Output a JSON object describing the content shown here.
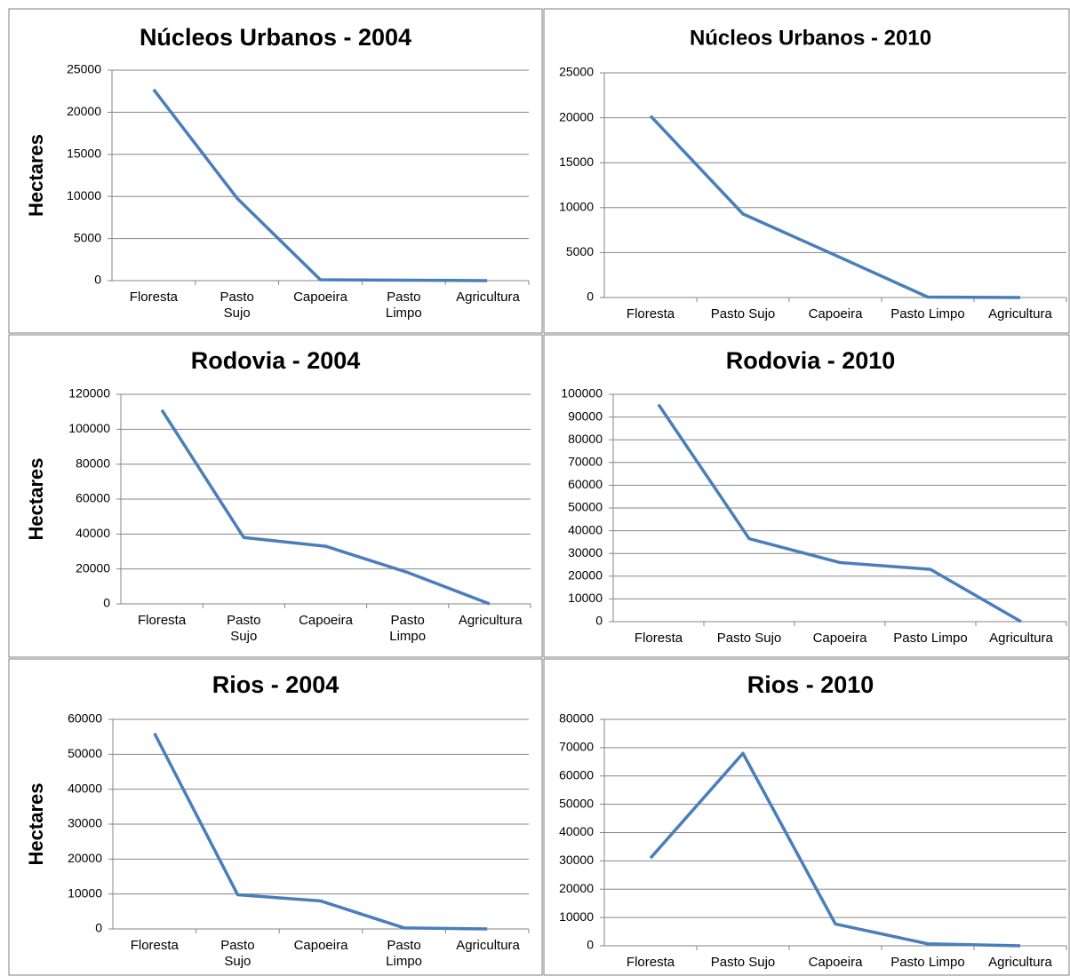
{
  "chart_data": [
    {
      "type": "line",
      "title": "Núcleos Urbanos - 2004",
      "ylabel": "Hectares",
      "categories": [
        "Floresta",
        "Pasto Sujo",
        "Capoeira",
        "Pasto Limpo",
        "Agricultura"
      ],
      "series": [
        {
          "name": "Núcleos Urbanos - 2004",
          "color": "#4a7ebb",
          "values": [
            22700,
            9800,
            100,
            50,
            0
          ]
        }
      ],
      "ylim": [
        0,
        25000
      ],
      "yticks": [
        0,
        5000,
        10000,
        15000,
        20000,
        25000
      ],
      "grid": true
    },
    {
      "type": "line",
      "title": "Núcleos Urbanos - 2010",
      "categories": [
        "Floresta",
        "Pasto Sujo",
        "Capoeira",
        "Pasto Limpo",
        "Agricultura"
      ],
      "series": [
        {
          "name": "Núcleos Urbanos - 2010",
          "color": "#4a7ebb",
          "values": [
            20200,
            9300,
            4700,
            50,
            0
          ]
        }
      ],
      "ylim": [
        0,
        25000
      ],
      "yticks": [
        0,
        5000,
        10000,
        15000,
        20000,
        25000
      ],
      "grid": true
    },
    {
      "type": "line",
      "title": "Rodovia - 2004",
      "ylabel": "Hectares",
      "categories": [
        "Floresta",
        "Pasto Sujo",
        "Capoeira",
        "Pasto Limpo",
        "Agricultura"
      ],
      "series": [
        {
          "name": "Rodovia - 2004",
          "color": "#4a7ebb",
          "values": [
            111000,
            38000,
            33000,
            18000,
            0
          ]
        }
      ],
      "ylim": [
        0,
        120000
      ],
      "yticks": [
        0,
        20000,
        40000,
        60000,
        80000,
        100000,
        120000
      ],
      "grid": true
    },
    {
      "type": "line",
      "title": "Rodovia - 2010",
      "categories": [
        "Floresta",
        "Pasto Sujo",
        "Capoeira",
        "Pasto Limpo",
        "Agricultura"
      ],
      "series": [
        {
          "name": "Rodovia - 2010",
          "color": "#4a7ebb",
          "values": [
            95500,
            36500,
            26000,
            23000,
            0
          ]
        }
      ],
      "ylim": [
        0,
        100000
      ],
      "yticks": [
        0,
        10000,
        20000,
        30000,
        40000,
        50000,
        60000,
        70000,
        80000,
        90000,
        100000
      ],
      "grid": true
    },
    {
      "type": "line",
      "title": "Rios - 2004",
      "ylabel": "Hectares",
      "categories": [
        "Floresta",
        "Pasto Sujo",
        "Capoeira",
        "Pasto Limpo",
        "Agricultura"
      ],
      "series": [
        {
          "name": "Rios - 2004",
          "color": "#4a7ebb",
          "values": [
            56000,
            9800,
            8000,
            300,
            0
          ]
        }
      ],
      "ylim": [
        0,
        60000
      ],
      "yticks": [
        0,
        10000,
        20000,
        30000,
        40000,
        50000,
        60000
      ],
      "grid": true
    },
    {
      "type": "line",
      "title": "Rios - 2010",
      "categories": [
        "Floresta",
        "Pasto Sujo",
        "Capoeira",
        "Pasto Limpo",
        "Agricultura"
      ],
      "series": [
        {
          "name": "Rios - 2010",
          "color": "#4a7ebb",
          "values": [
            31000,
            68000,
            7700,
            700,
            0
          ]
        }
      ],
      "ylim": [
        0,
        80000
      ],
      "yticks": [
        0,
        10000,
        20000,
        30000,
        40000,
        50000,
        60000,
        70000,
        80000
      ],
      "grid": true
    }
  ]
}
